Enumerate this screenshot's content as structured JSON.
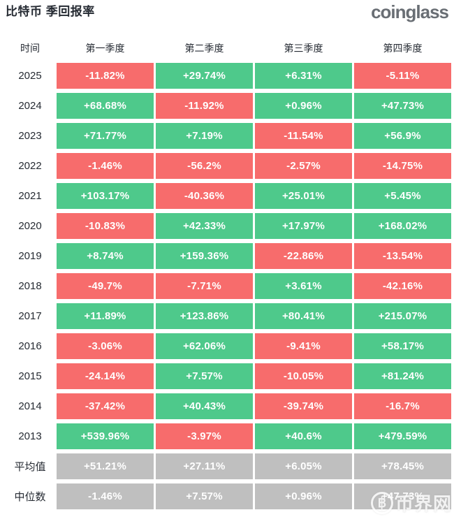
{
  "header": {
    "title": "比特币 季回报率",
    "logo_text": "coinglass"
  },
  "watermark": {
    "logo_glyph": "฿",
    "text": "币界网"
  },
  "colors": {
    "positive": "#4ec98b",
    "negative": "#f76c6c",
    "summary": "#bfbfbf",
    "dark_text": "#262b33",
    "logo_text": "#696e74"
  },
  "chart_data": {
    "type": "heatmap",
    "title": "比特币 季回报率",
    "value_unit": "%",
    "legend": "green = positive quarterly return, red = negative quarterly return, gray = summary statistics",
    "columns": [
      "时间",
      "第一季度",
      "第二季度",
      "第三季度",
      "第四季度"
    ],
    "rows": [
      {
        "label": "2025",
        "kind": "year",
        "values": [
          "-11.82%",
          "+29.74%",
          "+6.31%",
          "-5.11%"
        ]
      },
      {
        "label": "2024",
        "kind": "year",
        "values": [
          "+68.68%",
          "-11.92%",
          "+0.96%",
          "+47.73%"
        ]
      },
      {
        "label": "2023",
        "kind": "year",
        "values": [
          "+71.77%",
          "+7.19%",
          "-11.54%",
          "+56.9%"
        ]
      },
      {
        "label": "2022",
        "kind": "year",
        "values": [
          "-1.46%",
          "-56.2%",
          "-2.57%",
          "-14.75%"
        ]
      },
      {
        "label": "2021",
        "kind": "year",
        "values": [
          "+103.17%",
          "-40.36%",
          "+25.01%",
          "+5.45%"
        ]
      },
      {
        "label": "2020",
        "kind": "year",
        "values": [
          "-10.83%",
          "+42.33%",
          "+17.97%",
          "+168.02%"
        ]
      },
      {
        "label": "2019",
        "kind": "year",
        "values": [
          "+8.74%",
          "+159.36%",
          "-22.86%",
          "-13.54%"
        ]
      },
      {
        "label": "2018",
        "kind": "year",
        "values": [
          "-49.7%",
          "-7.71%",
          "+3.61%",
          "-42.16%"
        ]
      },
      {
        "label": "2017",
        "kind": "year",
        "values": [
          "+11.89%",
          "+123.86%",
          "+80.41%",
          "+215.07%"
        ]
      },
      {
        "label": "2016",
        "kind": "year",
        "values": [
          "-3.06%",
          "+62.06%",
          "-9.41%",
          "+58.17%"
        ]
      },
      {
        "label": "2015",
        "kind": "year",
        "values": [
          "-24.14%",
          "+7.57%",
          "-10.05%",
          "+81.24%"
        ]
      },
      {
        "label": "2014",
        "kind": "year",
        "values": [
          "-37.42%",
          "+40.43%",
          "-39.74%",
          "-16.7%"
        ]
      },
      {
        "label": "2013",
        "kind": "year",
        "values": [
          "+539.96%",
          "-3.97%",
          "+40.6%",
          "+479.59%"
        ]
      },
      {
        "label": "平均值",
        "kind": "summary",
        "values": [
          "+51.21%",
          "+27.11%",
          "+6.05%",
          "+78.45%"
        ]
      },
      {
        "label": "中位数",
        "kind": "summary",
        "values": [
          "-1.46%",
          "+7.57%",
          "+0.96%",
          "+47.73%"
        ]
      }
    ]
  }
}
